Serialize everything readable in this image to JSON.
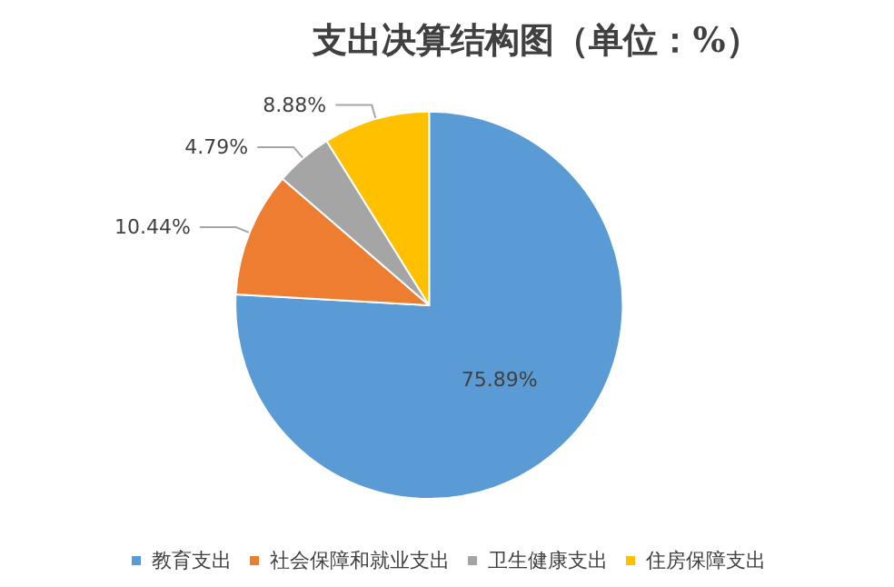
{
  "chart_data": {
    "type": "pie",
    "title": "支出决算结构图（单位：%）",
    "categories": [
      "教育支出",
      "社会保障和就业支出",
      "卫生健康支出",
      "住房保障支出"
    ],
    "values": [
      75.89,
      10.44,
      4.79,
      8.88
    ],
    "value_labels": [
      "75.89%",
      "10.44%",
      "4.79%",
      "8.88%"
    ],
    "colors": [
      "#5b9bd5",
      "#ed7d31",
      "#a5a5a5",
      "#ffc000"
    ],
    "legend": "bottom"
  }
}
